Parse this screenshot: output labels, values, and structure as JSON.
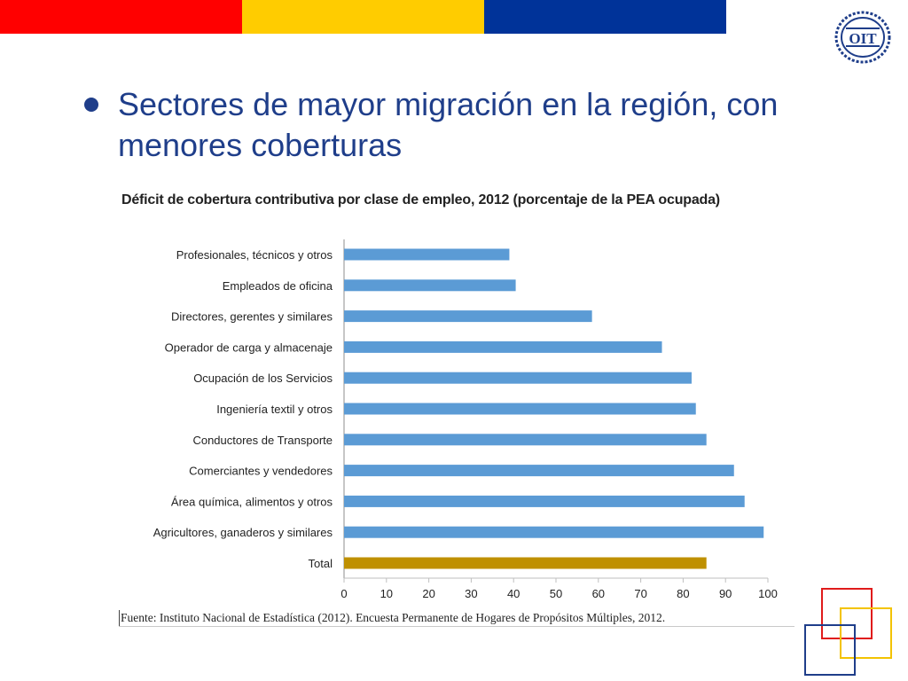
{
  "slide": {
    "heading": "Sectores de mayor migración en la región, con menores coberturas",
    "logo_text": "OIT",
    "source": "Fuente: Instituto Nacional de Estadística (2012). Encuesta Permanente de Hogares de Propósitos Múltiples, 2012."
  },
  "colors": {
    "band_red": "#ff0000",
    "band_yellow": "#ffcc00",
    "band_blue": "#003399",
    "bar": "#5b9bd5",
    "total_bar": "#bf9000",
    "heading": "#1f3e8a"
  },
  "chart_data": {
    "type": "bar",
    "orientation": "horizontal",
    "title": "Déficit de cobertura contributiva por clase de empleo, 2012 (porcentaje de la PEA ocupada)",
    "categories": [
      "Profesionales, técnicos y otros",
      "Empleados de oficina",
      "Directores, gerentes y similares",
      "Operador de carga y almacenaje",
      "Ocupación de los Servicios",
      "Ingeniería textil y otros",
      "Conductores de Transporte",
      "Comerciantes y vendedores",
      "Área química, alimentos y otros",
      "Agricultores, ganaderos y similares",
      "Total"
    ],
    "values": [
      39,
      40.5,
      58.5,
      75,
      82,
      83,
      85.5,
      92,
      94.5,
      99,
      85.5
    ],
    "highlight": "Total",
    "xlim": [
      0,
      100
    ],
    "xticks": [
      "0",
      "10",
      "20",
      "30",
      "40",
      "50",
      "60",
      "70",
      "80",
      "90",
      "100"
    ],
    "grid": false
  }
}
